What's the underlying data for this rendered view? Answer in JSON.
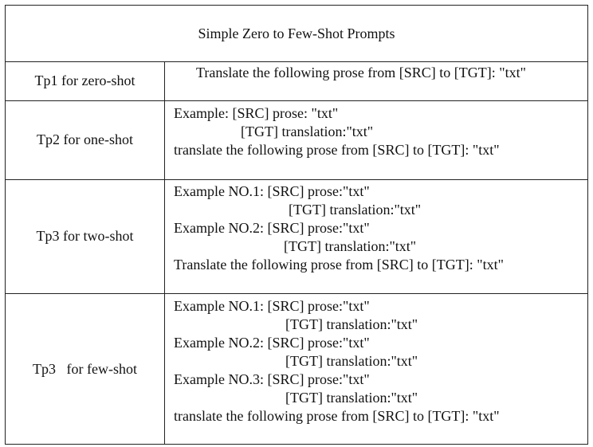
{
  "table": {
    "title": "Simple Zero to Few-Shot Prompts",
    "rows": [
      {
        "label": "Tp1 for zero-shot",
        "lines": [
          "Translate the following prose from [SRC] to [TGT]: \"txt\""
        ]
      },
      {
        "label": "Tp2 for one-shot",
        "lines": [
          "Example: [SRC] prose: \"txt\"",
          "[TGT] translation:\"txt\"",
          "translate the following prose from [SRC] to [TGT]: \"txt\""
        ]
      },
      {
        "label": "Tp3 for two-shot",
        "lines": [
          "Example NO.1: [SRC] prose:\"txt\"",
          "[TGT] translation:\"txt\"",
          "Example NO.2: [SRC] prose:\"txt\"",
          "[TGT] translation:\"txt\"",
          "Translate the following prose from [SRC] to [TGT]: \"txt\""
        ]
      },
      {
        "label": "Tp3   for few-shot",
        "lines": [
          "Example NO.1: [SRC] prose:\"txt\"",
          "[TGT] translation:\"txt\"",
          "Example NO.2: [SRC] prose:\"txt\"",
          "[TGT] translation:\"txt\"",
          "Example NO.3: [SRC] prose:\"txt\"",
          "[TGT] translation:\"txt\"",
          "translate the following prose from [SRC] to [TGT]: \"txt\""
        ]
      }
    ]
  }
}
